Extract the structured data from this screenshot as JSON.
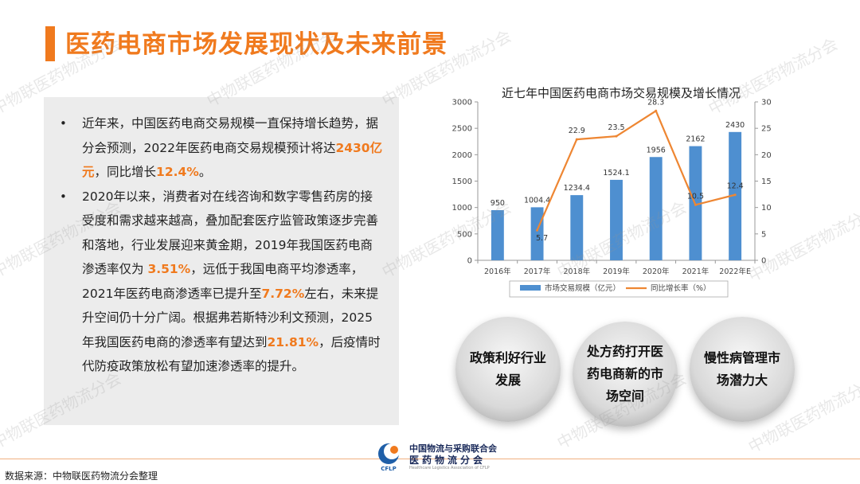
{
  "title": "医药电商市场发展现状及未来前景",
  "bullets": {
    "b1": {
      "p1": "近年来，中国医药电商交易规模一直保持增长趋势，据分会预测，2022年医药电商交易规模预计将达",
      "h1": "2430亿元",
      "p2": "，同比增长",
      "h2": "12.4%",
      "p3": "。"
    },
    "b2": {
      "p1": "2020年以来，消费者对在线咨询和数字零售药房的接受度和需求越来越高，叠加配套医疗监管政策逐步完善和落地，行业发展迎来黄金期，2019年我国医药电商渗透率仅为 ",
      "h1": "3.51%",
      "p2": "，远低于我国电商平均渗透率，2021年医药电商渗透率已提升至",
      "h2": "7.72%",
      "p3": "左右，未来提升空间仍十分广阔。根据弗若斯特沙利文预测，2025年我国医药电商的渗透率有望达到",
      "h3": "21.81%",
      "p4": "，后疫情时代防疫政策放松有望加速渗透率的提升。"
    }
  },
  "chart_data": {
    "type": "bar",
    "title": "近七年中国医药电商市场交易规模及增长情况",
    "categories": [
      "2016年",
      "2017年",
      "2018年",
      "2019年",
      "2020年",
      "2021年",
      "2022年E"
    ],
    "series": [
      {
        "name": "市场交易规模（亿元）",
        "type": "bar",
        "axis": "left",
        "values": [
          950,
          1004.4,
          1234.4,
          1524.1,
          1956,
          2162,
          2430
        ],
        "labels": [
          "950",
          "1004.4",
          "1234.4",
          "1524.1",
          "1956",
          "2162",
          "2430"
        ]
      },
      {
        "name": "同比增长率（%）",
        "type": "line",
        "axis": "right",
        "values": [
          null,
          5.7,
          22.9,
          23.5,
          28.3,
          10.5,
          12.4
        ],
        "labels": [
          "",
          "5.7",
          "22.9",
          "23.5",
          "28.3",
          "10.5",
          "12.4"
        ]
      }
    ],
    "ylim_left": [
      0,
      3000
    ],
    "yticks_left": [
      "0",
      "500",
      "1000",
      "1500",
      "2000",
      "2500",
      "3000"
    ],
    "ylim_right": [
      0,
      30
    ],
    "yticks_right": [
      "0",
      "5",
      "10",
      "15",
      "20",
      "25",
      "30"
    ],
    "grid": false,
    "legend": "bottom",
    "colors": {
      "bar": "#4e8fd0",
      "line": "#ee8632"
    }
  },
  "circles": [
    "政策利好行业发展",
    "处方药打开医药电商新的市场空间",
    "慢性病管理市场潜力大"
  ],
  "footer": {
    "source": "数据来源：中物联医药物流分会整理",
    "org_line1": "中国物流与采购联合会",
    "org_line2": "医药物流分会",
    "org_line3": "Healthcare Logistics Association of CFLP",
    "logo_text": "CFLP"
  },
  "watermark": "中物联医药物流分会",
  "colors": {
    "accent": "#f07a1e",
    "panel": "#ececec"
  }
}
